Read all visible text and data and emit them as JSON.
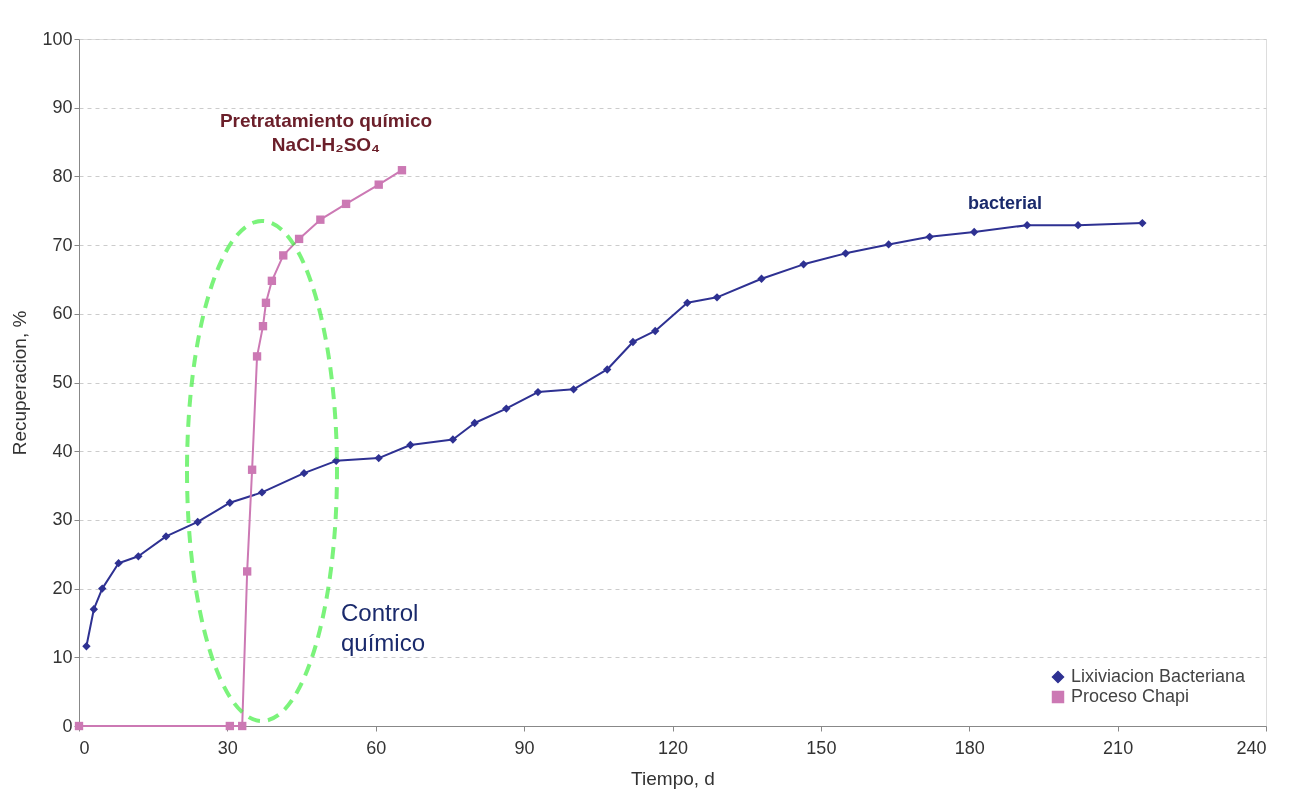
{
  "chart_data": {
    "type": "line",
    "xlabel": "Tiempo, d",
    "ylabel": "Recuperacion, %",
    "xlim": [
      0,
      240
    ],
    "xticks": [
      0,
      30,
      60,
      90,
      120,
      150,
      180,
      210,
      240
    ],
    "ylim": [
      0,
      100
    ],
    "yticks": [
      0,
      10,
      20,
      30,
      40,
      50,
      60,
      70,
      80,
      90,
      100
    ],
    "grid": "y",
    "legend": "bottom right",
    "line_style": "solid",
    "series": [
      {
        "name": "Lixiviacion Bacteriana",
        "color": "#2e3192",
        "marker": "diamond",
        "x": [
          1.5,
          3,
          4.7,
          8,
          12,
          17.6,
          24,
          30.5,
          37,
          45.5,
          52,
          60.6,
          67,
          75.6,
          80,
          86.4,
          92.8,
          100,
          106.8,
          112,
          116.5,
          123,
          129,
          138,
          146.5,
          155,
          163.7,
          172,
          181,
          191.7,
          202,
          215
        ],
        "values": [
          11.6,
          17,
          20,
          23.7,
          24.7,
          27.6,
          29.7,
          32.5,
          34,
          36.8,
          38.6,
          39,
          40.9,
          41.7,
          44.1,
          46.2,
          48.6,
          49,
          51.9,
          55.9,
          57.5,
          61.6,
          62.4,
          65.1,
          67.2,
          68.8,
          70.1,
          71.2,
          71.9,
          72.9,
          72.9,
          73.2
        ]
      },
      {
        "name": "Proceso Chapi",
        "color": "#cc79b4",
        "marker": "square",
        "x": [
          0,
          30.5,
          33,
          34,
          35,
          36,
          37.2,
          37.8,
          39,
          41.3,
          44.5,
          48.8,
          54,
          60.6,
          65.3
        ],
        "values": [
          0,
          0,
          0,
          22.5,
          37.3,
          53.8,
          58.2,
          61.6,
          64.8,
          68.5,
          70.9,
          73.7,
          76,
          78.8,
          80.9
        ]
      }
    ],
    "annotations": [
      "Pretratamiento químico\nNaCl-H₂SO₄",
      "bacterial",
      "Control\nquímico"
    ]
  }
}
